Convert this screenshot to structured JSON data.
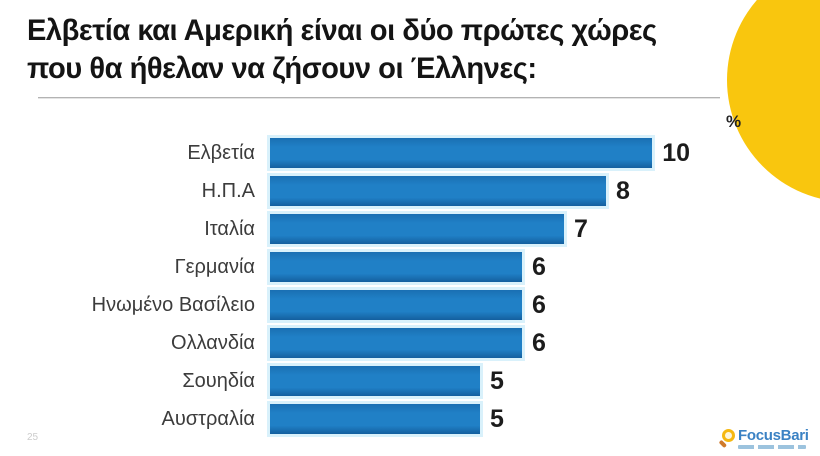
{
  "slide": {
    "title_lines": [
      "Ελβετία και Αμερική είναι οι δύο πρώτες χώρες",
      "που θα ήθελαν να ζήσουν οι Έλληνες:"
    ],
    "page_number": "25",
    "unit_label": "%"
  },
  "chart_data": {
    "type": "bar",
    "orientation": "horizontal",
    "title": "Ελβετία και Αμερική είναι οι δύο πρώτες χώρες που θα ήθελαν να ζήσουν οι Έλληνες:",
    "unit": "%",
    "categories": [
      "Ελβετία",
      "Η.Π.Α",
      "Ιταλία",
      "Γερμανία",
      "Ηνωμένο Βασίλειο",
      "Ολλανδία",
      "Σουηδία",
      "Αυστραλία"
    ],
    "values": [
      10,
      8,
      7,
      6,
      6,
      6,
      5,
      5
    ],
    "xlim": [
      0,
      10
    ],
    "grid": false,
    "legend": false,
    "value_labels": true,
    "bar_color": "#1b75bc"
  },
  "logo": {
    "text": "FocusBari",
    "icon": "magnifier-icon",
    "text_color": "#3b82c4",
    "icon_color": "#f5b812"
  },
  "colors": {
    "accent_circle": "#f9c60e",
    "bar": "#1b75bc",
    "title_text": "#141414",
    "category_text": "#3c3c3c",
    "value_text": "#1c1c1c",
    "underline": "#b3b3b3"
  }
}
